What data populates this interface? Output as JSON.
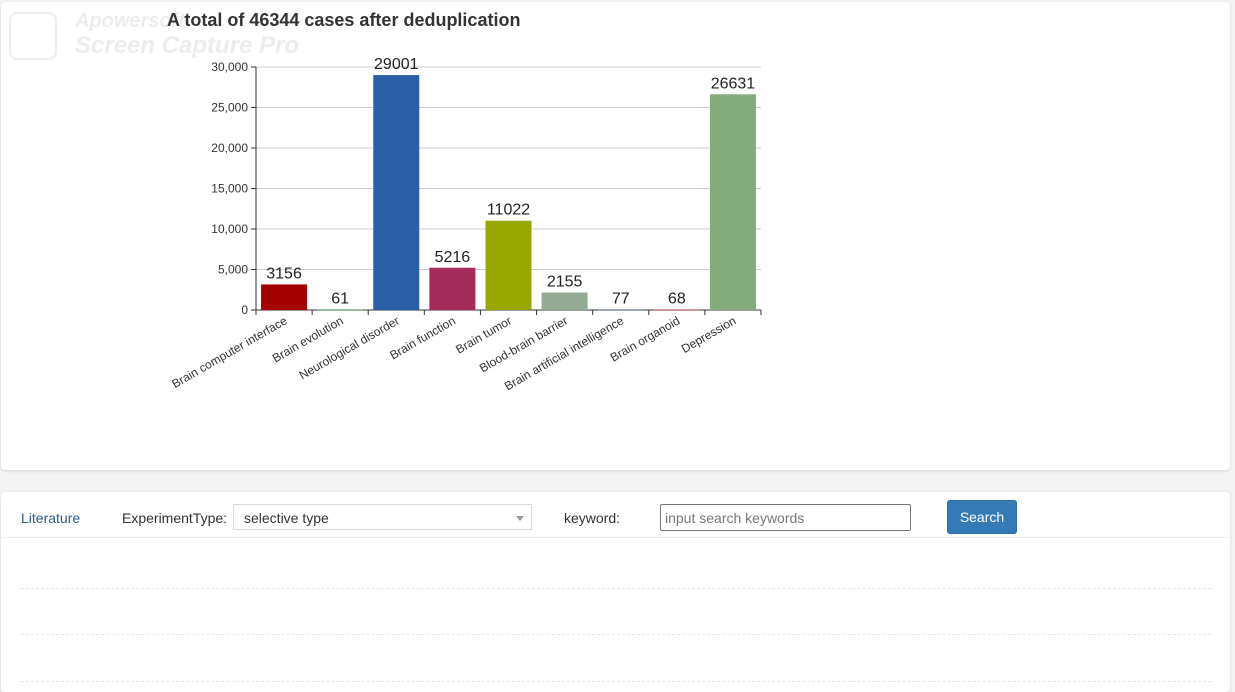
{
  "watermark": {
    "line1": "Apowersoft",
    "line2": "Screen Capture Pro"
  },
  "chart_data": {
    "type": "bar",
    "title": "A total of 46344 cases after deduplication",
    "categories": [
      "Brain computer interface",
      "Brain evolution",
      "Neurological disorder",
      "Brain function",
      "Brain tumor",
      "Blood-brain barrier",
      "Brain artificial intelligence",
      "Brain organoid",
      "Depression"
    ],
    "values": [
      3156,
      61,
      29001,
      5216,
      11022,
      2155,
      77,
      68,
      26631
    ],
    "colors": [
      "#a50000",
      "#3a8a3a",
      "#2a5fa8",
      "#a52b5b",
      "#98a800",
      "#94aa94",
      "#5a6ea0",
      "#b8404a",
      "#84ab7c"
    ],
    "yticks": [
      "0",
      "5,000",
      "10,000",
      "15,000",
      "20,000",
      "25,000",
      "30,000"
    ],
    "ylim": [
      0,
      30000
    ],
    "grid": true,
    "xlabel": "",
    "ylabel": ""
  },
  "search_bar": {
    "tab_label": "Literature",
    "experiment_type_label": "ExperimentType:",
    "experiment_type_value": "selective type",
    "keyword_label": "keyword:",
    "keyword_placeholder": "input search keywords",
    "search_button": "Search"
  }
}
